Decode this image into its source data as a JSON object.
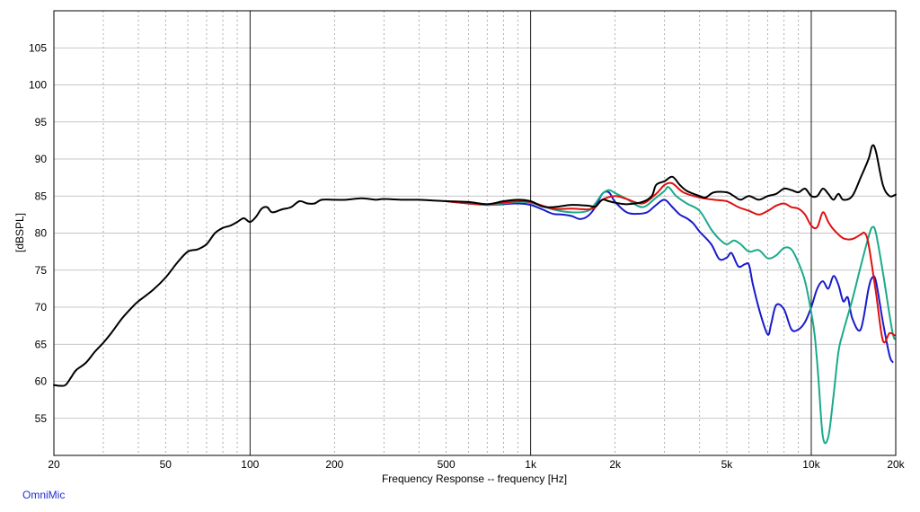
{
  "brand_label": "OmniMic",
  "chart_data": {
    "type": "line",
    "title": "",
    "xlabel": "Frequency Response -- frequency [Hz]",
    "ylabel": "[dBSPL]",
    "x_scale": "log",
    "xlim": [
      20,
      20000
    ],
    "ylim": [
      50,
      110
    ],
    "grid": true,
    "x_ticks": [
      {
        "value": 20,
        "label": "20"
      },
      {
        "value": 50,
        "label": "50"
      },
      {
        "value": 100,
        "label": "100"
      },
      {
        "value": 200,
        "label": "200"
      },
      {
        "value": 500,
        "label": "500"
      },
      {
        "value": 1000,
        "label": "1k"
      },
      {
        "value": 2000,
        "label": "2k"
      },
      {
        "value": 5000,
        "label": "5k"
      },
      {
        "value": 10000,
        "label": "10k"
      },
      {
        "value": 20000,
        "label": "20k"
      }
    ],
    "y_ticks": [
      {
        "value": 55,
        "label": "55"
      },
      {
        "value": 60,
        "label": "60"
      },
      {
        "value": 65,
        "label": "65"
      },
      {
        "value": 70,
        "label": "70"
      },
      {
        "value": 75,
        "label": "75"
      },
      {
        "value": 80,
        "label": "80"
      },
      {
        "value": 85,
        "label": "85"
      },
      {
        "value": 90,
        "label": "90"
      },
      {
        "value": 95,
        "label": "95"
      },
      {
        "value": 100,
        "label": "100"
      },
      {
        "value": 105,
        "label": "105"
      }
    ],
    "series": [
      {
        "color": "#1a1acc",
        "points": [
          [
            500,
            84.3
          ],
          [
            600,
            84
          ],
          [
            700,
            83.8
          ],
          [
            800,
            83.9
          ],
          [
            900,
            84
          ],
          [
            1000,
            83.8
          ],
          [
            1100,
            83.2
          ],
          [
            1200,
            82.6
          ],
          [
            1300,
            82.5
          ],
          [
            1400,
            82.3
          ],
          [
            1500,
            81.9
          ],
          [
            1600,
            82.3
          ],
          [
            1700,
            83.5
          ],
          [
            1800,
            85.3
          ],
          [
            1900,
            85.5
          ],
          [
            2000,
            84.2
          ],
          [
            2200,
            82.8
          ],
          [
            2400,
            82.6
          ],
          [
            2600,
            82.8
          ],
          [
            2800,
            83.8
          ],
          [
            3000,
            84.5
          ],
          [
            3200,
            83.5
          ],
          [
            3400,
            82.5
          ],
          [
            3600,
            82
          ],
          [
            3800,
            81.3
          ],
          [
            4000,
            80.2
          ],
          [
            4400,
            78.5
          ],
          [
            4700,
            76.5
          ],
          [
            5000,
            76.7
          ],
          [
            5200,
            77.3
          ],
          [
            5500,
            75.5
          ],
          [
            5800,
            75.8
          ],
          [
            6000,
            75.7
          ],
          [
            6200,
            73
          ],
          [
            6600,
            69
          ],
          [
            7000,
            66.3
          ],
          [
            7200,
            67.8
          ],
          [
            7500,
            70.3
          ],
          [
            8000,
            69.7
          ],
          [
            8500,
            67
          ],
          [
            9000,
            67
          ],
          [
            9500,
            68
          ],
          [
            10000,
            70
          ],
          [
            10500,
            72.5
          ],
          [
            11000,
            73.5
          ],
          [
            11500,
            72.5
          ],
          [
            12000,
            74.2
          ],
          [
            12500,
            73
          ],
          [
            13000,
            70.8
          ],
          [
            13500,
            71.3
          ],
          [
            14000,
            68.5
          ],
          [
            15000,
            67
          ],
          [
            16000,
            72.5
          ],
          [
            16500,
            74
          ],
          [
            17000,
            73.5
          ],
          [
            18000,
            68
          ],
          [
            19000,
            63.5
          ],
          [
            19500,
            62.6
          ]
        ]
      },
      {
        "color": "#1aaa8a",
        "points": [
          [
            500,
            84.3
          ],
          [
            600,
            84
          ],
          [
            700,
            83.8
          ],
          [
            800,
            84
          ],
          [
            900,
            84.2
          ],
          [
            1000,
            84.1
          ],
          [
            1200,
            83.2
          ],
          [
            1400,
            82.8
          ],
          [
            1600,
            83
          ],
          [
            1700,
            84
          ],
          [
            1800,
            85.3
          ],
          [
            1900,
            85.8
          ],
          [
            2000,
            85.4
          ],
          [
            2200,
            84.6
          ],
          [
            2500,
            83.5
          ],
          [
            2800,
            84.8
          ],
          [
            3000,
            85.7
          ],
          [
            3100,
            86.2
          ],
          [
            3300,
            85
          ],
          [
            3600,
            84
          ],
          [
            4000,
            83
          ],
          [
            4400,
            80.5
          ],
          [
            4700,
            79.2
          ],
          [
            5000,
            78.5
          ],
          [
            5300,
            79
          ],
          [
            5600,
            78.5
          ],
          [
            6000,
            77.5
          ],
          [
            6500,
            77.7
          ],
          [
            7000,
            76.6
          ],
          [
            7500,
            77
          ],
          [
            8000,
            78
          ],
          [
            8500,
            77.8
          ],
          [
            9000,
            76
          ],
          [
            9500,
            73.5
          ],
          [
            10000,
            69.3
          ],
          [
            10300,
            66
          ],
          [
            10600,
            60.5
          ],
          [
            11000,
            52.5
          ],
          [
            11500,
            52.5
          ],
          [
            12000,
            58
          ],
          [
            12500,
            64
          ],
          [
            13000,
            66.7
          ],
          [
            14000,
            71
          ],
          [
            15000,
            75.5
          ],
          [
            16000,
            79.5
          ],
          [
            16500,
            80.8
          ],
          [
            17000,
            80
          ],
          [
            18000,
            74.7
          ],
          [
            19000,
            69
          ],
          [
            19500,
            66.5
          ],
          [
            19800,
            65.7
          ]
        ]
      },
      {
        "color": "#e01010",
        "points": [
          [
            500,
            84.3
          ],
          [
            600,
            84
          ],
          [
            700,
            83.9
          ],
          [
            800,
            84.1
          ],
          [
            900,
            84.3
          ],
          [
            1000,
            84.2
          ],
          [
            1200,
            83.3
          ],
          [
            1400,
            83.3
          ],
          [
            1600,
            83.2
          ],
          [
            1700,
            83.5
          ],
          [
            1800,
            84.5
          ],
          [
            2000,
            85
          ],
          [
            2200,
            84.6
          ],
          [
            2500,
            84
          ],
          [
            2800,
            85.3
          ],
          [
            3000,
            86.5
          ],
          [
            3200,
            86.7
          ],
          [
            3500,
            85.5
          ],
          [
            4000,
            84.8
          ],
          [
            4500,
            84.5
          ],
          [
            5000,
            84.3
          ],
          [
            5500,
            83.5
          ],
          [
            6000,
            83
          ],
          [
            6500,
            82.5
          ],
          [
            7000,
            83
          ],
          [
            7500,
            83.7
          ],
          [
            8000,
            84
          ],
          [
            8500,
            83.5
          ],
          [
            9000,
            83.3
          ],
          [
            9500,
            82.5
          ],
          [
            10000,
            81
          ],
          [
            10500,
            80.8
          ],
          [
            11000,
            82.8
          ],
          [
            11500,
            81.5
          ],
          [
            12000,
            80.5
          ],
          [
            13000,
            79.3
          ],
          [
            14000,
            79.2
          ],
          [
            15000,
            79.8
          ],
          [
            15500,
            80
          ],
          [
            16000,
            78.5
          ],
          [
            17000,
            72
          ],
          [
            18000,
            65.5
          ],
          [
            19000,
            66.5
          ],
          [
            19800,
            66.2
          ]
        ]
      },
      {
        "color": "#000000",
        "points": [
          [
            20,
            59.5
          ],
          [
            21,
            59.4
          ],
          [
            22,
            59.5
          ],
          [
            23,
            60.5
          ],
          [
            24,
            61.5
          ],
          [
            26,
            62.5
          ],
          [
            28,
            64
          ],
          [
            30,
            65.2
          ],
          [
            32,
            66.5
          ],
          [
            35,
            68.5
          ],
          [
            38,
            70
          ],
          [
            40,
            70.8
          ],
          [
            45,
            72.3
          ],
          [
            50,
            74
          ],
          [
            55,
            76
          ],
          [
            60,
            77.5
          ],
          [
            65,
            77.8
          ],
          [
            70,
            78.5
          ],
          [
            75,
            80
          ],
          [
            80,
            80.7
          ],
          [
            85,
            81
          ],
          [
            90,
            81.5
          ],
          [
            95,
            82
          ],
          [
            100,
            81.5
          ],
          [
            105,
            82.2
          ],
          [
            110,
            83.3
          ],
          [
            115,
            83.5
          ],
          [
            120,
            82.8
          ],
          [
            130,
            83.2
          ],
          [
            140,
            83.5
          ],
          [
            150,
            84.3
          ],
          [
            160,
            84
          ],
          [
            170,
            84
          ],
          [
            180,
            84.5
          ],
          [
            200,
            84.5
          ],
          [
            220,
            84.5
          ],
          [
            250,
            84.7
          ],
          [
            280,
            84.5
          ],
          [
            300,
            84.6
          ],
          [
            350,
            84.5
          ],
          [
            400,
            84.5
          ],
          [
            450,
            84.4
          ],
          [
            500,
            84.3
          ],
          [
            600,
            84.2
          ],
          [
            700,
            83.9
          ],
          [
            800,
            84.3
          ],
          [
            900,
            84.5
          ],
          [
            1000,
            84.3
          ],
          [
            1100,
            83.6
          ],
          [
            1200,
            83.5
          ],
          [
            1400,
            83.8
          ],
          [
            1600,
            83.7
          ],
          [
            1700,
            83.6
          ],
          [
            1800,
            84.5
          ],
          [
            1900,
            84.3
          ],
          [
            2000,
            84.1
          ],
          [
            2200,
            83.9
          ],
          [
            2500,
            84.2
          ],
          [
            2700,
            85
          ],
          [
            2800,
            86.5
          ],
          [
            3000,
            87
          ],
          [
            3200,
            87.6
          ],
          [
            3400,
            86.5
          ],
          [
            3600,
            85.7
          ],
          [
            4000,
            85
          ],
          [
            4200,
            84.8
          ],
          [
            4500,
            85.5
          ],
          [
            5000,
            85.5
          ],
          [
            5300,
            85
          ],
          [
            5600,
            84.5
          ],
          [
            6000,
            85
          ],
          [
            6500,
            84.5
          ],
          [
            7000,
            85
          ],
          [
            7500,
            85.3
          ],
          [
            8000,
            86
          ],
          [
            8500,
            85.8
          ],
          [
            9000,
            85.5
          ],
          [
            9500,
            86
          ],
          [
            10000,
            85
          ],
          [
            10500,
            85
          ],
          [
            11000,
            86
          ],
          [
            11500,
            85.3
          ],
          [
            12000,
            84.5
          ],
          [
            12500,
            85.3
          ],
          [
            13000,
            84.5
          ],
          [
            14000,
            85
          ],
          [
            15000,
            87.5
          ],
          [
            16000,
            90
          ],
          [
            16500,
            91.8
          ],
          [
            17000,
            91
          ],
          [
            18000,
            86.5
          ],
          [
            19000,
            85
          ],
          [
            20000,
            85.2
          ]
        ]
      }
    ]
  }
}
